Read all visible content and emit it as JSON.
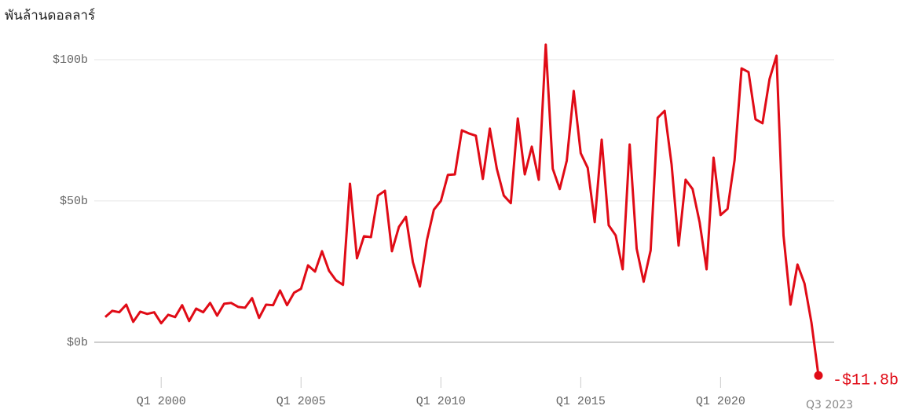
{
  "chart_data": {
    "type": "line",
    "y_axis_label": "พันล้านดอลลาร์",
    "categories": [
      null,
      null,
      null,
      null,
      null,
      null,
      null,
      null,
      "Q1 2000",
      null,
      null,
      null,
      null,
      null,
      null,
      null,
      null,
      null,
      null,
      null,
      null,
      null,
      null,
      null,
      null,
      null,
      null,
      null,
      "Q1 2005",
      null,
      null,
      null,
      null,
      null,
      null,
      null,
      null,
      null,
      null,
      null,
      null,
      null,
      null,
      null,
      null,
      null,
      null,
      null,
      "Q1 2010",
      null,
      null,
      null,
      null,
      null,
      null,
      null,
      null,
      null,
      null,
      null,
      null,
      null,
      null,
      null,
      null,
      null,
      null,
      null,
      "Q1 2015",
      null,
      null,
      null,
      null,
      null,
      null,
      null,
      null,
      null,
      null,
      null,
      null,
      null,
      null,
      null,
      null,
      null,
      null,
      null,
      "Q1 2020",
      null,
      null,
      null,
      null,
      null,
      null,
      null,
      null,
      null,
      null,
      null,
      null,
      null,
      "Q3 2023"
    ],
    "series": [
      {
        "color": "#e00b16",
        "values": [
          8.9,
          11.1,
          10.6,
          13.3,
          7.2,
          10.8,
          10,
          10.6,
          6.7,
          9.7,
          8.9,
          13.1,
          7.5,
          11.9,
          10.6,
          13.9,
          9.4,
          13.6,
          13.9,
          12.5,
          12.2,
          15.6,
          8.6,
          13.3,
          13.1,
          18.3,
          13.1,
          17.5,
          18.9,
          27.2,
          25,
          32.2,
          25.3,
          21.9,
          20.3,
          56.1,
          29.7,
          37.5,
          37.2,
          51.9,
          53.6,
          32.2,
          40.8,
          44.4,
          28.3,
          19.7,
          36.1,
          46.9,
          50,
          59.2,
          59.4,
          75,
          73.9,
          73.1,
          57.8,
          75.6,
          61.4,
          51.9,
          49.2,
          79.2,
          59.4,
          69.2,
          57.5,
          105.3,
          61.4,
          54.2,
          64.2,
          88.9,
          66.9,
          61.7,
          42.5,
          71.7,
          41.4,
          37.8,
          25.8,
          70,
          33.1,
          21.4,
          32.5,
          79.4,
          81.9,
          62.8,
          34.2,
          57.5,
          54.2,
          42.5,
          25.8,
          65.3,
          45,
          47.2,
          64.4,
          96.9,
          95.6,
          78.9,
          77.5,
          93.1,
          101.4,
          37.8,
          13.3,
          27.5,
          20.8,
          6.9,
          -11.8
        ],
        "value_labels": [
          null,
          null,
          null,
          null,
          null,
          null,
          null,
          null,
          null,
          null,
          null,
          null,
          null,
          null,
          null,
          null,
          null,
          null,
          null,
          null,
          null,
          null,
          null,
          null,
          null,
          null,
          null,
          null,
          null,
          null,
          null,
          null,
          null,
          null,
          null,
          null,
          null,
          null,
          null,
          null,
          null,
          null,
          null,
          null,
          null,
          null,
          null,
          null,
          null,
          null,
          null,
          null,
          null,
          null,
          null,
          null,
          null,
          null,
          null,
          null,
          null,
          null,
          null,
          null,
          null,
          null,
          null,
          null,
          null,
          null,
          null,
          null,
          null,
          null,
          null,
          null,
          null,
          null,
          null,
          null,
          null,
          null,
          null,
          null,
          null,
          null,
          null,
          null,
          null,
          null,
          null,
          null,
          null,
          null,
          null,
          null,
          null,
          null,
          null,
          null,
          null,
          null,
          "-$11.8b"
        ]
      }
    ],
    "ylim": [
      -17,
      110
    ],
    "yticks": [
      {
        "value": 0,
        "label": "$0b"
      },
      {
        "value": 50,
        "label": "$50b"
      },
      {
        "value": 100,
        "label": "$100b"
      }
    ],
    "grid": true
  }
}
